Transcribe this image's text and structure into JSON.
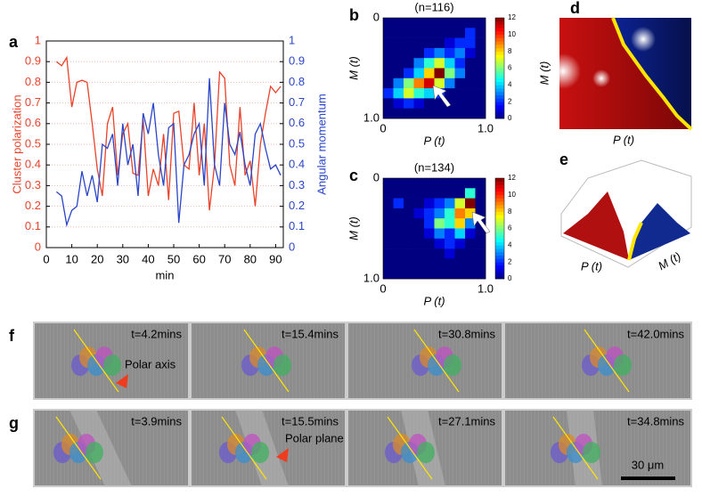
{
  "chart_data": [
    {
      "type": "line",
      "panel": "a",
      "xlabel": "min",
      "ylabel": "Cluster polarization",
      "y2label": "Angular momentum",
      "x": [
        4,
        6,
        8,
        10,
        12,
        14,
        16,
        18,
        20,
        22,
        24,
        26,
        28,
        30,
        32,
        34,
        36,
        38,
        40,
        42,
        44,
        46,
        48,
        50,
        52,
        54,
        56,
        58,
        60,
        62,
        64,
        66,
        68,
        70,
        72,
        74,
        76,
        78,
        80,
        82,
        84,
        86,
        88,
        90,
        92
      ],
      "series": [
        {
          "name": "Cluster polarization",
          "color": "#e8432a",
          "axis": "y",
          "values": [
            0.9,
            0.88,
            0.92,
            0.68,
            0.8,
            0.81,
            0.8,
            0.6,
            0.38,
            0.25,
            0.6,
            0.68,
            0.35,
            0.55,
            0.6,
            0.36,
            0.35,
            0.62,
            0.25,
            0.38,
            0.3,
            0.55,
            0.23,
            0.65,
            0.66,
            0.4,
            0.38,
            0.7,
            0.35,
            0.6,
            0.18,
            0.4,
            0.85,
            0.82,
            0.4,
            0.3,
            0.68,
            0.35,
            0.42,
            0.2,
            0.5,
            0.65,
            0.78,
            0.75,
            0.78
          ]
        },
        {
          "name": "Angular momentum",
          "color": "#2a45c8",
          "axis": "y2",
          "values": [
            0.27,
            0.25,
            0.11,
            0.18,
            0.2,
            0.37,
            0.25,
            0.35,
            0.22,
            0.5,
            0.48,
            0.55,
            0.3,
            0.6,
            0.4,
            0.5,
            0.25,
            0.65,
            0.55,
            0.7,
            0.45,
            0.3,
            0.58,
            0.6,
            0.12,
            0.4,
            0.45,
            0.55,
            0.6,
            0.3,
            0.82,
            0.4,
            0.3,
            0.7,
            0.5,
            0.45,
            0.56,
            0.4,
            0.3,
            0.55,
            0.6,
            0.48,
            0.38,
            0.4,
            0.35
          ]
        }
      ],
      "xlim": [
        0,
        93
      ],
      "xticks": [
        0,
        10,
        20,
        30,
        40,
        50,
        60,
        70,
        80,
        90
      ],
      "ylim": [
        0,
        1
      ],
      "yticks": [
        0,
        0.1,
        0.2,
        0.3,
        0.4,
        0.5,
        0.6,
        0.7,
        0.8,
        0.9,
        1
      ],
      "y2lim": [
        0,
        1
      ],
      "y2ticks": [
        0,
        0.1,
        0.2,
        0.3,
        0.4,
        0.5,
        0.6,
        0.7,
        0.8,
        0.9,
        1
      ],
      "grid": true
    },
    {
      "type": "heatmap",
      "panel": "b",
      "title": "(n=116)",
      "xlabel": "P (t)",
      "ylabel": "M (t)",
      "xlim": [
        0,
        1
      ],
      "xticks": [
        0,
        {
          "value": 1,
          "label": "1.0"
        }
      ],
      "ylim": [
        0,
        1
      ],
      "yticks": [
        0,
        {
          "value": 1,
          "label": "1.0"
        }
      ],
      "zlim": [
        0,
        12
      ],
      "colorbar_ticks": [
        0,
        2,
        4,
        6,
        8,
        10,
        12
      ],
      "z": [
        [
          0,
          0,
          0,
          0,
          0,
          0,
          0,
          0,
          0,
          0
        ],
        [
          0,
          0,
          0,
          0,
          0,
          0,
          0,
          0,
          2,
          0
        ],
        [
          0,
          0,
          0,
          0,
          0,
          0,
          1,
          2,
          2,
          0
        ],
        [
          0,
          0,
          0,
          0,
          2,
          3,
          2,
          3,
          1,
          0
        ],
        [
          0,
          0,
          0,
          3,
          5,
          7,
          4,
          2,
          0,
          0
        ],
        [
          0,
          0,
          2,
          4,
          8,
          12,
          6,
          3,
          0,
          0
        ],
        [
          0,
          3,
          6,
          9,
          11,
          7,
          3,
          0,
          0,
          0
        ],
        [
          2,
          4,
          7,
          5,
          4,
          2,
          0,
          0,
          0,
          0
        ],
        [
          0,
          1,
          2,
          1,
          0,
          0,
          0,
          0,
          0,
          0
        ],
        [
          0,
          0,
          0,
          0,
          0,
          0,
          0,
          0,
          0,
          0
        ]
      ]
    },
    {
      "type": "heatmap",
      "panel": "c",
      "title": "(n=134)",
      "xlabel": "P (t)",
      "ylabel": "M (t)",
      "xlim": [
        0,
        1
      ],
      "xticks": [
        0,
        {
          "value": 1,
          "label": "1.0"
        }
      ],
      "ylim": [
        0,
        1
      ],
      "yticks": [
        0,
        {
          "value": 1,
          "label": "1.0"
        }
      ],
      "zlim": [
        0,
        12
      ],
      "colorbar_ticks": [
        0,
        2,
        4,
        6,
        8,
        10,
        12
      ],
      "z": [
        [
          0,
          0,
          0,
          0,
          0,
          0,
          0,
          0,
          0,
          0
        ],
        [
          0,
          0,
          0,
          0,
          0,
          0,
          0,
          0,
          5,
          0
        ],
        [
          0,
          2,
          0,
          0,
          1,
          2,
          3,
          7,
          12,
          0
        ],
        [
          0,
          0,
          0,
          1,
          2,
          3,
          5,
          9,
          8,
          0
        ],
        [
          0,
          0,
          0,
          0,
          2,
          6,
          5,
          8,
          3,
          0
        ],
        [
          0,
          0,
          0,
          0,
          1,
          3,
          2,
          4,
          1,
          0
        ],
        [
          0,
          0,
          0,
          0,
          0,
          1,
          2,
          1,
          0,
          0
        ],
        [
          0,
          0,
          0,
          0,
          0,
          0,
          1,
          0,
          0,
          0
        ],
        [
          0,
          0,
          0,
          0,
          0,
          0,
          0,
          0,
          0,
          0
        ],
        [
          0,
          0,
          0,
          0,
          0,
          0,
          0,
          0,
          0,
          0
        ]
      ]
    }
  ],
  "panels": {
    "d": {
      "label": "d",
      "xlabel": "P (t)",
      "ylabel": "M (t)"
    },
    "e": {
      "label": "e",
      "xlabel": "P (t)",
      "ylabel": "M (t)"
    },
    "f": {
      "label": "f",
      "frames": [
        "t=4.2mins",
        "t=15.4mins",
        "t=30.8mins",
        "t=42.0mins"
      ],
      "annotation": "Polar axis"
    },
    "g": {
      "label": "g",
      "frames": [
        "t=3.9mins",
        "t=15.5mins",
        "t=27.1mins",
        "t=34.8mins"
      ],
      "annotation": "Polar plane",
      "scale_bar": "30 μm"
    }
  }
}
